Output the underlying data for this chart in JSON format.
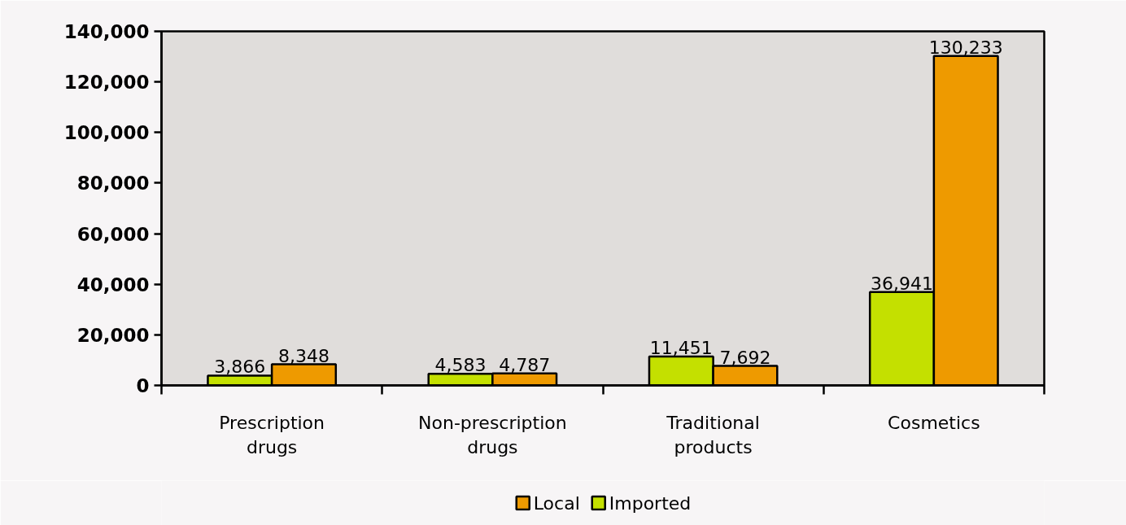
{
  "chart_data": {
    "type": "bar",
    "categories": [
      "Prescription drugs",
      "Non-prescription drugs",
      "Traditional products",
      "Cosmetics"
    ],
    "series": [
      {
        "name": "Imported",
        "color": "#c4e000",
        "values": [
          3866,
          4583,
          11451,
          36941
        ],
        "value_labels": [
          "3,866",
          "4,583",
          "11,451",
          "36,941"
        ]
      },
      {
        "name": "Local",
        "color": "#ee9a00",
        "values": [
          8348,
          4787,
          7692,
          130233
        ],
        "value_labels": [
          "8,348",
          "4,787",
          "7,692",
          "130,233"
        ]
      }
    ],
    "ylim": [
      0,
      140000
    ],
    "yticks": [
      {
        "value": 0,
        "label": "0"
      },
      {
        "value": 20000,
        "label": "20,000"
      },
      {
        "value": 40000,
        "label": "40,000"
      },
      {
        "value": 60000,
        "label": "60,000"
      },
      {
        "value": 80000,
        "label": "80,000"
      },
      {
        "value": 100000,
        "label": "100,000"
      },
      {
        "value": 120000,
        "label": "120,000"
      },
      {
        "value": 140000,
        "label": "140,000"
      }
    ],
    "legend": "bottom"
  }
}
